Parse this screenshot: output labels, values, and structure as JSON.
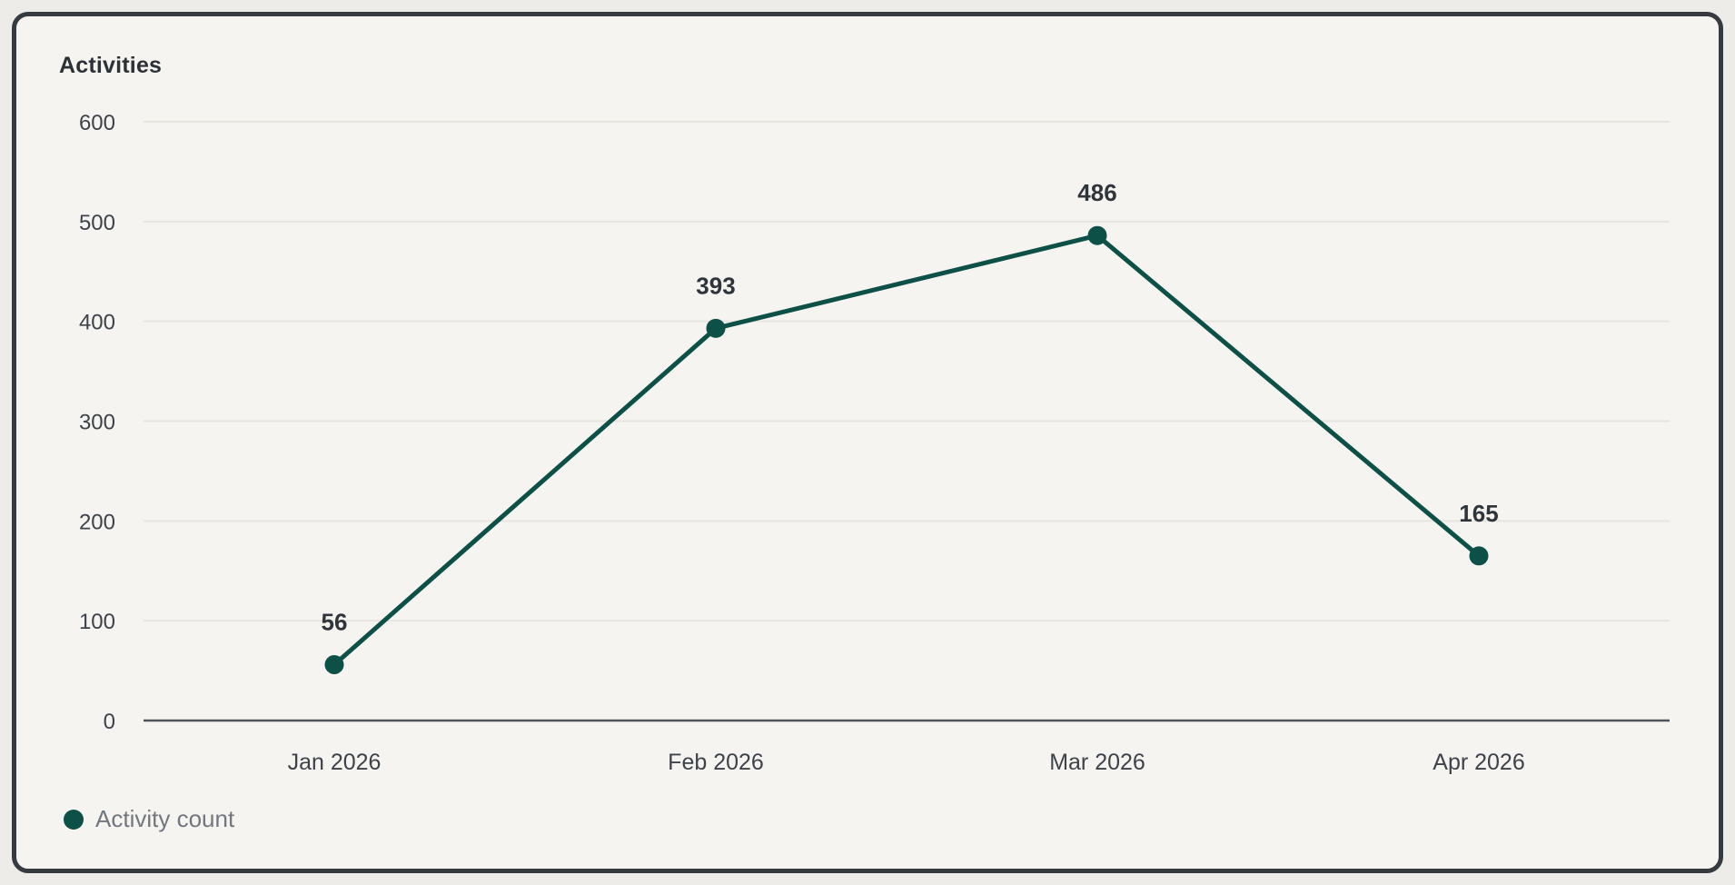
{
  "card": {
    "title": "Activities"
  },
  "chart_data": {
    "type": "line",
    "title": "Activities",
    "categories": [
      "Jan 2026",
      "Feb 2026",
      "Mar 2026",
      "Apr 2026"
    ],
    "series": [
      {
        "name": "Activity count",
        "values": [
          56,
          393,
          486,
          165
        ]
      }
    ],
    "data_labels": [
      "56",
      "393",
      "486",
      "165"
    ],
    "xlabel": "",
    "ylabel": "",
    "ylim": [
      0,
      600
    ],
    "yticks": [
      0,
      100,
      200,
      300,
      400,
      500,
      600
    ],
    "grid": "horizontal",
    "legend_position": "bottom-left",
    "marker": "circle",
    "colors": {
      "series": "#0d5047",
      "grid_line": "#e8e5df",
      "axis_line": "#50555b",
      "tick_text": "#3e4349",
      "category_text": "#3e4349",
      "data_label_text": "#30353b",
      "title_text": "#2c3136",
      "legend_text": "#72777e",
      "card_background": "#f5f4f1",
      "page_background": "#edece8",
      "card_border": "#363b42"
    }
  },
  "legend": {
    "label": "Activity count"
  }
}
